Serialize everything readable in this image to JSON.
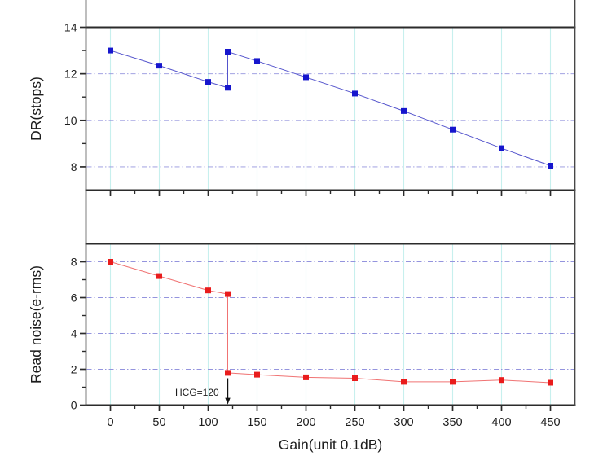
{
  "colors": {
    "background": "#ffffff",
    "frame": "#2b2b2b",
    "spine": "#474747",
    "grid_vertical": "#c7f0ee",
    "grid_horizontal": "#9494de",
    "text": "#1c1c1c",
    "annotation": "#111111",
    "dr_marker": "#1616cd",
    "dr_line": "#5353cc",
    "read_noise_marker": "#e91c1c",
    "read_noise_line": "#f07373"
  },
  "chart_data": [
    {
      "id": "dr",
      "type": "line",
      "title": "",
      "ylabel": "DR(stops)",
      "xlabel": "",
      "xlim": [
        -25,
        475
      ],
      "ylim": [
        7,
        14
      ],
      "grid": true,
      "legend": "none",
      "x_major_ticks": [
        0,
        50,
        100,
        150,
        200,
        250,
        300,
        350,
        400,
        450
      ],
      "x_minor_ticks": [
        25,
        75,
        125,
        175,
        225,
        275,
        325,
        375,
        425
      ],
      "x_tick_labels": [],
      "y_major_ticks": [
        8,
        10,
        12,
        14
      ],
      "y_tick_labels": [
        "8",
        "10",
        "12",
        "14"
      ],
      "y_minor_ticks": [
        9,
        11,
        13
      ],
      "v_gridlines": [
        0,
        50,
        100,
        150,
        200,
        250,
        300,
        350,
        400,
        450
      ],
      "h_gridlines": [
        8,
        10,
        12
      ],
      "series": [
        {
          "id": "dr-series",
          "name": "DR",
          "marker": "square",
          "marker_color": "#1616cd",
          "line_color": "#5353cc",
          "points": [
            [
              0,
              13.0
            ],
            [
              50,
              12.35
            ],
            [
              100,
              11.65
            ],
            [
              120,
              11.4
            ],
            [
              120,
              12.95
            ],
            [
              150,
              12.55
            ],
            [
              200,
              11.85
            ],
            [
              250,
              11.15
            ],
            [
              300,
              10.4
            ],
            [
              350,
              9.6
            ],
            [
              400,
              8.8
            ],
            [
              450,
              8.05
            ]
          ]
        }
      ]
    },
    {
      "id": "read-noise",
      "type": "line",
      "title": "",
      "ylabel": "Read noise(e-rms)",
      "xlabel": "Gain(unit 0.1dB)",
      "xlim": [
        -25,
        475
      ],
      "ylim": [
        0,
        9
      ],
      "grid": true,
      "legend": "none",
      "x_major_ticks": [
        0,
        50,
        100,
        150,
        200,
        250,
        300,
        350,
        400,
        450
      ],
      "x_minor_ticks": [
        25,
        75,
        125,
        175,
        225,
        275,
        325,
        375,
        425
      ],
      "x_tick_labels": [
        "0",
        "50",
        "100",
        "150",
        "200",
        "250",
        "300",
        "350",
        "400",
        "450"
      ],
      "y_major_ticks": [
        0,
        2,
        4,
        6,
        8
      ],
      "y_tick_labels": [
        "0",
        "2",
        "4",
        "6",
        "8"
      ],
      "y_minor_ticks": [
        1,
        3,
        5,
        7
      ],
      "v_gridlines": [
        0,
        50,
        100,
        150,
        200,
        250,
        300,
        350,
        400,
        450
      ],
      "h_gridlines": [
        2,
        4,
        6,
        8
      ],
      "series": [
        {
          "id": "read-noise-series",
          "name": "Read noise",
          "marker": "square",
          "marker_color": "#e91c1c",
          "line_color": "#f07373",
          "points": [
            [
              0,
              8.0
            ],
            [
              50,
              7.2
            ],
            [
              100,
              6.4
            ],
            [
              120,
              6.2
            ],
            [
              120,
              1.8
            ],
            [
              150,
              1.7
            ],
            [
              200,
              1.55
            ],
            [
              250,
              1.5
            ],
            [
              300,
              1.3
            ],
            [
              350,
              1.3
            ],
            [
              400,
              1.4
            ],
            [
              450,
              1.25
            ]
          ]
        }
      ],
      "annotation": {
        "text": "HCG=120",
        "arrow_x": 120,
        "arrow_from_y": 1.5,
        "arrow_to_y": 0.38,
        "label_anchor_x": 111,
        "label_y": 0.52
      }
    }
  ]
}
